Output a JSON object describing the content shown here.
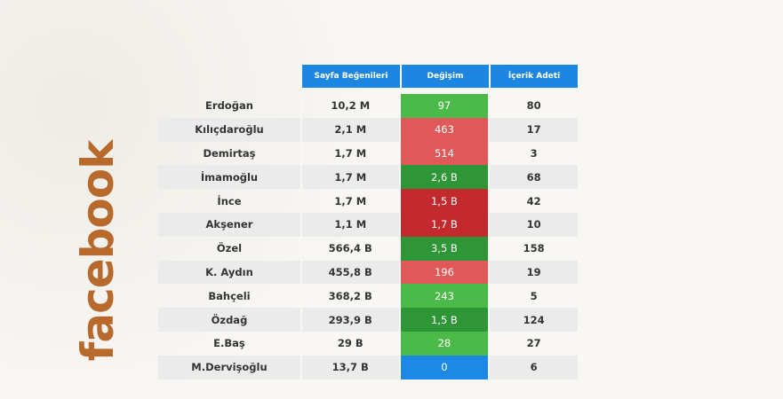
{
  "logo": "facebook",
  "headers": [
    "Sayfa Beğenileri",
    "Değişim",
    "İçerik Adeti"
  ],
  "colors": {
    "header": "#1c86e0",
    "green": "#4cba48",
    "dark_green": "#2e9637",
    "red": "#e05858",
    "dark_red": "#c22a2e",
    "blue": "#1e88e5"
  },
  "rows": [
    {
      "name": "Erdoğan",
      "likes": "10,2 M",
      "change": "97",
      "change_color": "#4cba48",
      "content": "80"
    },
    {
      "name": "Kılıçdaroğlu",
      "likes": "2,1 M",
      "change": "463",
      "change_color": "#e05858",
      "content": "17"
    },
    {
      "name": "Demirtaş",
      "likes": "1,7 M",
      "change": "514",
      "change_color": "#e05858",
      "content": "3"
    },
    {
      "name": "İmamoğlu",
      "likes": "1,7 M",
      "change": "2,6 B",
      "change_color": "#2e9637",
      "content": "68"
    },
    {
      "name": "İnce",
      "likes": "1,7 M",
      "change": "1,5 B",
      "change_color": "#c22a2e",
      "content": "42"
    },
    {
      "name": "Akşener",
      "likes": "1,1 M",
      "change": "1,7 B",
      "change_color": "#c22a2e",
      "content": "10"
    },
    {
      "name": "Özel",
      "likes": "566,4 B",
      "change": "3,5 B",
      "change_color": "#2e9637",
      "content": "158"
    },
    {
      "name": "K. Aydın",
      "likes": "455,8 B",
      "change": "196",
      "change_color": "#e05858",
      "content": "19"
    },
    {
      "name": "Bahçeli",
      "likes": "368,2 B",
      "change": "243",
      "change_color": "#4cba48",
      "content": "5"
    },
    {
      "name": "Özdağ",
      "likes": "293,9 B",
      "change": "1,5 B",
      "change_color": "#2e9637",
      "content": "124"
    },
    {
      "name": "E.Baş",
      "likes": "29 B",
      "change": "28",
      "change_color": "#4cba48",
      "content": "27"
    },
    {
      "name": "M.Dervişoğlu",
      "likes": "13,7 B",
      "change": "0",
      "change_color": "#1e88e5",
      "content": "6"
    }
  ]
}
